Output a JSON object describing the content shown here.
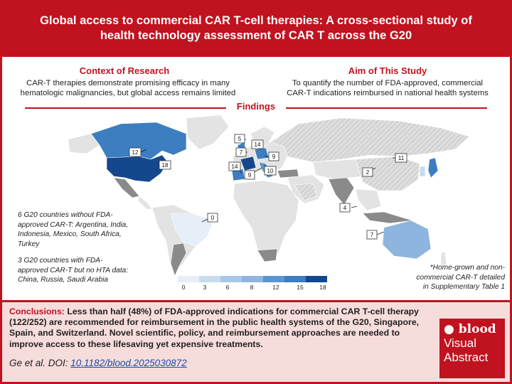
{
  "title": {
    "line1": "Global access to commercial CAR T-cell therapies: A cross-sectional study of",
    "line2": "health technology assessment of CAR T across the G20"
  },
  "context": {
    "heading": "Context of Research",
    "line1": "CAR-T therapies demonstrate promising efficacy in many",
    "line2": "hematologic malignancies, but global access remains limited"
  },
  "aim": {
    "heading": "Aim of This Study",
    "line1": "To quantify the number of FDA-approved, commercial",
    "line2": "CAR-T indications reimbursed in national health systems"
  },
  "findings": {
    "heading": "Findings"
  },
  "map": {
    "callouts": [
      "5",
      "7",
      "14",
      "9",
      "14",
      "9",
      "10",
      "12",
      "18",
      "0",
      "11",
      "2",
      "4",
      "7"
    ],
    "colors": {
      "no_data": "#e3e3e3",
      "no_fda": "#8a8a8a",
      "c0": "#e6eef8",
      "c7": "#8db5dd",
      "c12": "#3c7ec0",
      "c18": "#15478c"
    }
  },
  "notes": {
    "no_fda_l1": "6 G20 countries without FDA-",
    "no_fda_l2": "approved CAR-T: Argentina, India,",
    "no_fda_l3": "Indonesia, Mexico, South Africa,",
    "no_fda_l4": "Turkey",
    "no_hta_l1": "3 G20 countries with FDA-",
    "no_hta_l2": "approved CAR-T but no HTA data:",
    "no_hta_l3": "China, Russia, Saudi Arabia",
    "home_l1": "*Home-grown and non-",
    "home_l2": "commercial CAR-T detailed",
    "home_l3": "in Supplementary Table 1"
  },
  "legend": {
    "ticks": [
      "0",
      "3",
      "6",
      "8",
      "12",
      "15",
      "18"
    ],
    "colors": [
      "#e6eef8",
      "#c9dcef",
      "#a9c7e6",
      "#8db5dd",
      "#5b95cd",
      "#3c7ec0",
      "#15478c"
    ]
  },
  "conclusions": {
    "label": "Conclusions:",
    "text": "Less than half (48%) of FDA-approved indications for commercial CAR T-cell therapy (122/252) are recommended for reimbursement in the public health systems of the G20, Singapore, Spain, and Switzerland. Novel scientific, policy, and reimbursement approaches are needed to improve access to these lifesaving yet expensive treatments."
  },
  "citation": {
    "prefix": "Ge et al. DOI: ",
    "doi": "10.1182/blood.2025030872"
  },
  "badge": {
    "brand": "blood",
    "line2": "Visual",
    "line3": "Abstract"
  }
}
